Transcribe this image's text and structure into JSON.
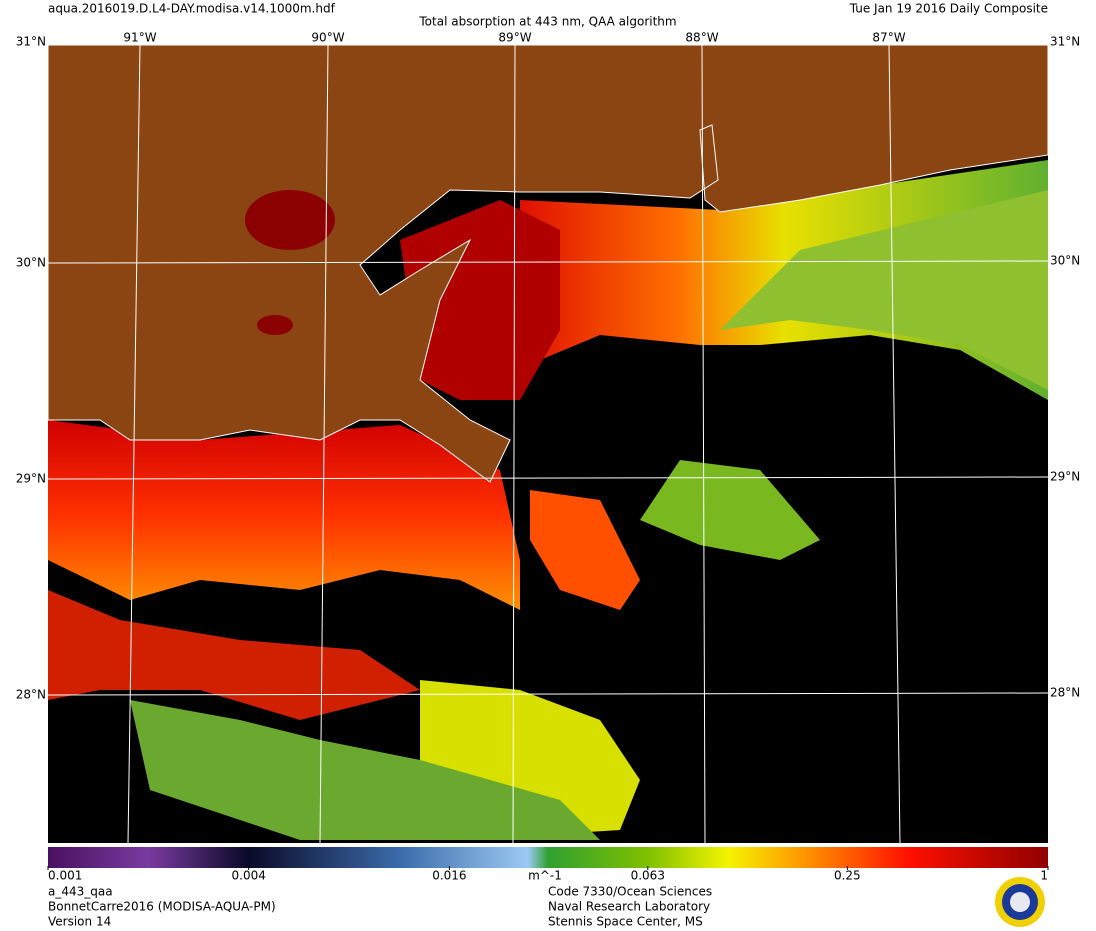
{
  "header": {
    "file": "aqua.2016019.D.L4-DAY.modisa.v14.1000m.hdf",
    "title": "Total absorption at 443 nm, QAA algorithm",
    "date": "Tue Jan 19 2016 Daily Composite"
  },
  "map": {
    "lon_labels": [
      "91°W",
      "90°W",
      "89°W",
      "88°W",
      "87°W"
    ],
    "lat_labels": [
      "31°N",
      "30°N",
      "29°N",
      "28°N"
    ]
  },
  "colorbar": {
    "scale": "log",
    "lim": [
      0.001,
      1
    ],
    "ticks": [
      0.001,
      0.004,
      0.016,
      0.063,
      0.25,
      1
    ],
    "units": "m^-1"
  },
  "footer": {
    "left": [
      "a_443_qaa",
      "BonnetCarre2016 (MODISA-AQUA-PM)",
      "Version 14"
    ],
    "right": [
      "Code 7330/Ocean Sciences",
      "Naval Research Laboratory",
      "Stennis Space Center, MS"
    ]
  }
}
